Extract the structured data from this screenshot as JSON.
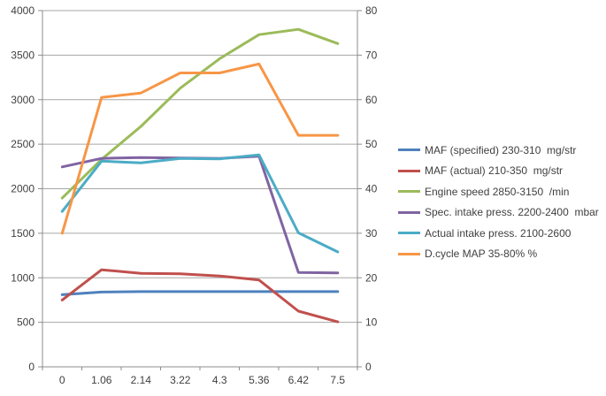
{
  "chart_data": {
    "type": "line",
    "title": "",
    "xlabel": "",
    "ylabel_left": "",
    "ylabel_right": "",
    "grid": true,
    "legend_position": "right",
    "categories": [
      "0",
      "1.06",
      "2.14",
      "3.22",
      "4.3",
      "5.36",
      "6.42",
      "7.5"
    ],
    "left_axis": {
      "min": 0,
      "max": 4000,
      "step": 500,
      "ticks": [
        0,
        500,
        1000,
        1500,
        2000,
        2500,
        3000,
        3500,
        4000
      ]
    },
    "right_axis": {
      "min": 0,
      "max": 80,
      "step": 10,
      "ticks": [
        0,
        10,
        20,
        30,
        40,
        50,
        60,
        70,
        80
      ]
    },
    "series": [
      {
        "id": "maf-specified",
        "name": "MAF (specified) 230-310  mg/str",
        "axis": "left",
        "color": "#4F81BD",
        "values": [
          810,
          840,
          845,
          845,
          845,
          845,
          845,
          845
        ]
      },
      {
        "id": "maf-actual",
        "name": "MAF (actual) 210-350  mg/str",
        "axis": "left",
        "color": "#C0504D",
        "values": [
          750,
          1090,
          1050,
          1045,
          1020,
          975,
          625,
          505
        ]
      },
      {
        "id": "engine-speed",
        "name": "Engine speed 2850-3150  /min",
        "axis": "left",
        "color": "#9BBB59",
        "values": [
          1895,
          2330,
          2700,
          3130,
          3460,
          3730,
          3790,
          3630
        ]
      },
      {
        "id": "spec-intake-press",
        "name": "Spec. intake press. 2200-2400  mbar",
        "axis": "left",
        "color": "#8064A2",
        "values": [
          2245,
          2340,
          2350,
          2345,
          2340,
          2365,
          1060,
          1055
        ]
      },
      {
        "id": "actual-intake-press",
        "name": "Actual intake press. 2100-2600",
        "axis": "left",
        "color": "#4BACC6",
        "values": [
          1745,
          2310,
          2290,
          2340,
          2335,
          2380,
          1505,
          1290
        ]
      },
      {
        "id": "dcycle-map",
        "name": "D.cycle MAP 35-80% %",
        "axis": "right",
        "color": "#F79646",
        "values": [
          30,
          60.5,
          61.5,
          66,
          66,
          68,
          52,
          52
        ]
      }
    ]
  },
  "colors": {
    "background": "#ffffff",
    "gridline": "#a6a6a6",
    "axis_line": "#8c8c8c",
    "tick_label": "#3f3f3f",
    "legend_text": "#3f3f3f"
  }
}
